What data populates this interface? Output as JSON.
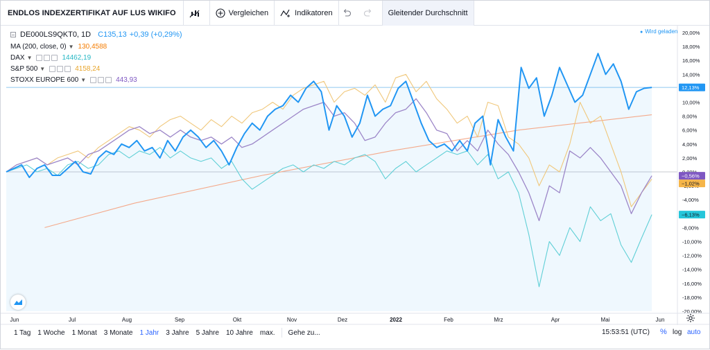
{
  "toolbar": {
    "title": "ENDLOS INDEXZERTIFIKAT AUF LUS WIKIFO",
    "compare": "Vergleichen",
    "indicators": "Indikatoren",
    "active_study": "Gleitender Durchschnitt"
  },
  "legend": {
    "symbol": "DE000LS9QKT0, 1D",
    "price": "C135,13",
    "change": "+0,39 (+0,29%)",
    "ma_label": "MA (200, close, 0)",
    "ma_value": "130,4588",
    "dax_label": "DAX",
    "dax_value": "14462,19",
    "sp_label": "S&P 500",
    "sp_value": "4158,24",
    "stoxx_label": "STOXX EUROPE 600",
    "stoxx_value": "443,93"
  },
  "status": "Wird geladen",
  "colors": {
    "main": "#2196f3",
    "ma": "#f4a98a",
    "dax": "#5fcfd6",
    "sp": "#f0c77a",
    "stoxx": "#9c86c8",
    "price_line": "#8fc8f0",
    "zero_line": "#c7c9cf",
    "accent": "#2962ff"
  },
  "chart_data": {
    "type": "line",
    "y_unit": "%",
    "ylim": [
      -20,
      20
    ],
    "x_labels": [
      "Jun",
      "Jul",
      "Aug",
      "Sep",
      "Okt",
      "Nov",
      "Dez",
      "2022",
      "Feb",
      "Mrz",
      "Apr",
      "Mai",
      "Jun"
    ],
    "y_ticks": [
      "20,00%",
      "18,00%",
      "16,00%",
      "14,00%",
      "12,00%",
      "10,00%",
      "8,00%",
      "6,00%",
      "4,00%",
      "2,00%",
      "0,00%",
      "-2,00%",
      "-4,00%",
      "-6,00%",
      "-8,00%",
      "-10,00%",
      "-12,00%",
      "-14,00%",
      "-16,00%",
      "-18,00%",
      "-20,00%"
    ],
    "last_value_labels": {
      "main": "12,13%",
      "stoxx": "−0,56%",
      "sp": "−1,02%",
      "dax": "−6,13%"
    },
    "series": [
      {
        "name": "DE000LS9QKT0",
        "key": "main",
        "x": [
          0,
          3,
          6,
          9,
          12,
          15,
          18,
          21,
          24,
          27,
          30,
          33,
          36,
          39,
          42,
          45,
          48,
          51,
          54,
          57,
          60,
          63,
          66,
          69,
          72,
          75,
          78,
          81,
          84,
          87,
          90,
          93,
          96,
          99,
          102,
          105,
          108,
          111,
          114,
          117,
          120,
          123,
          126,
          129,
          132,
          135,
          138,
          141,
          144,
          147,
          150,
          153,
          156,
          159,
          162,
          165,
          168,
          171,
          174,
          177,
          180,
          183,
          186,
          189,
          192,
          195,
          198,
          201,
          204,
          207,
          210,
          213,
          216,
          219,
          222,
          225,
          228,
          231,
          234,
          237,
          240,
          243,
          246,
          249,
          252
        ],
        "values": [
          0.0,
          0.5,
          1.0,
          -0.8,
          0.5,
          1.0,
          -0.5,
          -0.5,
          0.5,
          1.5,
          0.0,
          -0.3,
          2.0,
          3.0,
          2.5,
          4.0,
          3.5,
          4.5,
          3.0,
          3.5,
          2.0,
          4.5,
          3.0,
          5.0,
          6.0,
          5.0,
          3.5,
          4.5,
          3.0,
          1.0,
          3.5,
          5.5,
          7.0,
          6.0,
          8.0,
          9.0,
          9.5,
          11.0,
          10.0,
          12.0,
          13.0,
          11.5,
          6.0,
          9.5,
          8.0,
          5.0,
          7.0,
          11.0,
          8.0,
          9.0,
          9.5,
          12.0,
          13.0,
          10.0,
          7.0,
          4.5,
          3.5,
          4.0,
          3.0,
          4.5,
          3.0,
          7.0,
          8.0,
          1.0,
          7.5,
          5.0,
          3.0,
          15.0,
          12.0,
          13.5,
          8.0,
          11.0,
          15.0,
          12.5,
          10.0,
          11.0,
          14.0,
          17.0,
          14.0,
          15.5,
          13.0,
          9.0,
          11.5,
          12.0,
          12.13
        ]
      },
      {
        "name": "DAX",
        "key": "dax",
        "x": [
          0,
          4,
          8,
          12,
          16,
          20,
          24,
          28,
          32,
          36,
          40,
          44,
          48,
          52,
          56,
          60,
          64,
          68,
          72,
          76,
          80,
          84,
          88,
          92,
          96,
          100,
          104,
          108,
          112,
          116,
          120,
          124,
          128,
          132,
          136,
          140,
          144,
          148,
          152,
          156,
          160,
          164,
          168,
          172,
          176,
          180,
          184,
          188,
          192,
          196,
          200,
          204,
          208,
          212,
          216,
          220,
          224,
          228,
          232,
          236,
          240,
          244,
          248,
          252
        ],
        "values": [
          0.0,
          0.5,
          1.0,
          0.0,
          0.5,
          -0.5,
          1.0,
          1.5,
          0.5,
          1.0,
          2.5,
          3.0,
          2.0,
          3.0,
          2.5,
          3.5,
          2.0,
          3.0,
          2.0,
          1.5,
          2.0,
          0.5,
          1.5,
          -1.0,
          -2.5,
          -1.5,
          -0.5,
          0.5,
          1.0,
          0.0,
          1.0,
          0.5,
          1.5,
          1.0,
          2.0,
          2.5,
          1.5,
          -1.0,
          0.5,
          1.5,
          0.0,
          1.0,
          2.0,
          3.0,
          2.5,
          3.0,
          1.0,
          2.5,
          -1.0,
          0.0,
          -3.0,
          -9.0,
          -16.5,
          -10.0,
          -12.0,
          -8.0,
          -10.0,
          -5.0,
          -7.0,
          -6.0,
          -10.5,
          -13.0,
          -9.5,
          -6.13
        ]
      },
      {
        "name": "S&P 500",
        "key": "sp",
        "x": [
          0,
          4,
          8,
          12,
          16,
          20,
          24,
          28,
          32,
          36,
          40,
          44,
          48,
          52,
          56,
          60,
          64,
          68,
          72,
          76,
          80,
          84,
          88,
          92,
          96,
          100,
          104,
          108,
          112,
          116,
          120,
          124,
          128,
          132,
          136,
          140,
          144,
          148,
          152,
          156,
          160,
          164,
          168,
          172,
          176,
          180,
          184,
          188,
          192,
          196,
          200,
          204,
          208,
          212,
          216,
          220,
          224,
          228,
          232,
          236,
          240,
          244,
          248,
          252
        ],
        "values": [
          0.0,
          1.0,
          1.5,
          2.0,
          1.0,
          2.0,
          2.5,
          3.0,
          2.0,
          3.5,
          4.5,
          5.5,
          6.5,
          6.0,
          5.0,
          6.5,
          7.5,
          8.0,
          7.0,
          6.0,
          7.5,
          6.5,
          8.0,
          7.0,
          8.5,
          9.0,
          10.0,
          9.0,
          11.0,
          12.0,
          12.5,
          13.0,
          10.0,
          11.5,
          12.0,
          11.0,
          12.5,
          10.0,
          13.5,
          14.0,
          11.5,
          13.0,
          10.5,
          9.0,
          7.0,
          8.0,
          5.0,
          10.0,
          9.5,
          5.0,
          4.0,
          2.0,
          -2.0,
          1.0,
          0.0,
          4.0,
          10.0,
          7.0,
          8.0,
          4.0,
          0.0,
          -5.0,
          -3.0,
          -1.02
        ]
      },
      {
        "name": "STOXX EUROPE 600",
        "key": "stoxx",
        "x": [
          0,
          4,
          8,
          12,
          16,
          20,
          24,
          28,
          32,
          36,
          40,
          44,
          48,
          52,
          56,
          60,
          64,
          68,
          72,
          76,
          80,
          84,
          88,
          92,
          96,
          100,
          104,
          108,
          112,
          116,
          120,
          124,
          128,
          132,
          136,
          140,
          144,
          148,
          152,
          156,
          160,
          164,
          168,
          172,
          176,
          180,
          184,
          188,
          192,
          196,
          200,
          204,
          208,
          212,
          216,
          220,
          224,
          228,
          232,
          236,
          240,
          244,
          248,
          252
        ],
        "values": [
          0.0,
          1.0,
          1.5,
          2.0,
          1.0,
          1.5,
          2.0,
          1.0,
          2.5,
          3.0,
          4.0,
          5.0,
          6.0,
          6.5,
          5.5,
          6.0,
          5.0,
          6.0,
          5.0,
          4.5,
          5.0,
          4.0,
          5.0,
          3.5,
          4.0,
          5.0,
          6.0,
          7.0,
          8.0,
          9.0,
          9.5,
          10.0,
          8.0,
          8.5,
          7.0,
          4.5,
          5.0,
          7.0,
          8.5,
          9.0,
          10.5,
          8.5,
          6.0,
          5.5,
          3.0,
          4.5,
          3.0,
          6.0,
          4.0,
          2.5,
          0.0,
          -3.0,
          -7.0,
          -2.0,
          -3.0,
          3.0,
          2.0,
          3.5,
          2.0,
          0.0,
          -2.0,
          -6.0,
          -3.0,
          -0.56
        ]
      },
      {
        "name": "MA (200, close, 0)",
        "key": "ma",
        "x": [
          15,
          50,
          100,
          150,
          200,
          252
        ],
        "values": [
          -8.0,
          -4.5,
          -0.5,
          3.0,
          6.0,
          8.2
        ]
      }
    ]
  },
  "time_ranges": [
    "1 Tag",
    "1 Woche",
    "1 Monat",
    "3 Monate",
    "1 Jahr",
    "3 Jahre",
    "5 Jahre",
    "10 Jahre",
    "max."
  ],
  "active_range": "1 Jahr",
  "goto_label": "Gehe zu...",
  "time_readout": "15:53:51 (UTC)",
  "scale": {
    "percent": "%",
    "log": "log",
    "auto": "auto"
  },
  "icons": [
    "candles-icon",
    "plus-circle-icon",
    "indicators-icon",
    "undo-icon",
    "redo-icon",
    "gear-icon",
    "tradingview-logo-icon"
  ]
}
